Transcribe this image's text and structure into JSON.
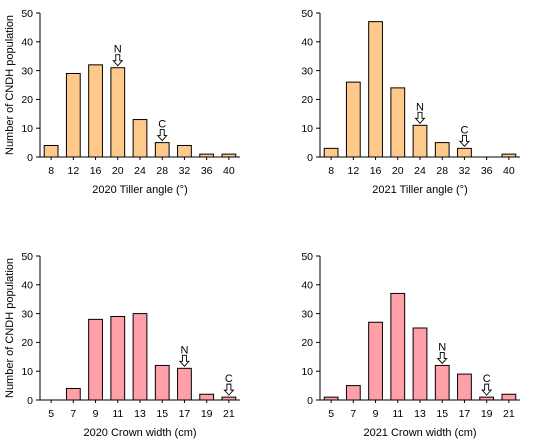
{
  "chart_data": [
    {
      "type": "bar",
      "xlabel": "2020 Tiller angle (°)",
      "ylabel": "Number of CNDH population",
      "categories": [
        "8",
        "12",
        "16",
        "20",
        "24",
        "28",
        "32",
        "36",
        "40"
      ],
      "values": [
        4,
        29,
        32,
        31,
        13,
        5,
        4,
        1,
        1
      ],
      "ylim": [
        0,
        50
      ],
      "yticks": [
        "0",
        "10",
        "20",
        "30",
        "40",
        "50"
      ],
      "bar_color": "#FFC98C",
      "markers": [
        {
          "label": "N",
          "category": "20"
        },
        {
          "label": "C",
          "category": "28"
        }
      ]
    },
    {
      "type": "bar",
      "xlabel": "2021 Tiller angle (°)",
      "ylabel": "",
      "categories": [
        "8",
        "12",
        "16",
        "20",
        "24",
        "28",
        "32",
        "36",
        "40"
      ],
      "values": [
        3,
        26,
        47,
        24,
        11,
        5,
        3,
        0,
        1
      ],
      "ylim": [
        0,
        50
      ],
      "yticks": [
        "0",
        "10",
        "20",
        "30",
        "40",
        "50"
      ],
      "bar_color": "#FFC98C",
      "markers": [
        {
          "label": "N",
          "category": "24"
        },
        {
          "label": "C",
          "category": "32"
        }
      ]
    },
    {
      "type": "bar",
      "xlabel": "2020 Crown width (cm)",
      "ylabel": "Number of CNDH population",
      "categories": [
        "5",
        "7",
        "9",
        "11",
        "13",
        "15",
        "17",
        "19",
        "21"
      ],
      "values": [
        0,
        4,
        28,
        29,
        30,
        12,
        11,
        2,
        1
      ],
      "ylim": [
        0,
        50
      ],
      "yticks": [
        "0",
        "10",
        "20",
        "30",
        "40",
        "50"
      ],
      "bar_color": "#FFA0A8",
      "markers": [
        {
          "label": "N",
          "category": "17"
        },
        {
          "label": "C",
          "category": "21"
        }
      ]
    },
    {
      "type": "bar",
      "xlabel": "2021 Crown width (cm)",
      "ylabel": "",
      "categories": [
        "5",
        "7",
        "9",
        "11",
        "13",
        "15",
        "17",
        "19",
        "21"
      ],
      "values": [
        1,
        5,
        27,
        37,
        25,
        12,
        9,
        1,
        2
      ],
      "ylim": [
        0,
        50
      ],
      "yticks": [
        "0",
        "10",
        "20",
        "30",
        "40",
        "50"
      ],
      "bar_color": "#FFA0A8",
      "markers": [
        {
          "label": "N",
          "category": "15"
        },
        {
          "label": "C",
          "category": "19"
        }
      ]
    }
  ]
}
